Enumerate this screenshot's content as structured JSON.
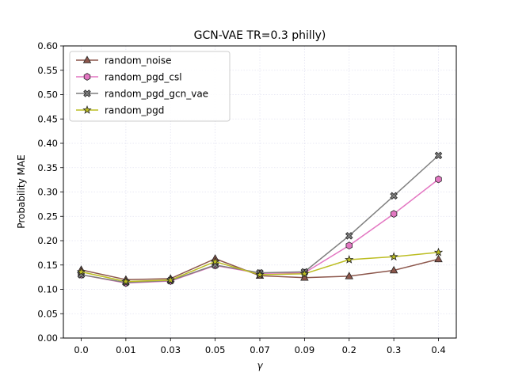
{
  "chart_data": {
    "type": "line",
    "title": "GCN-VAE TR=0.3 philly)",
    "xlabel": "γ",
    "ylabel": "Probability MAE",
    "categories": [
      "0.0",
      "0.01",
      "0.03",
      "0.05",
      "0.07",
      "0.09",
      "0.2",
      "0.3",
      "0.4"
    ],
    "ylim": [
      0.0,
      0.6
    ],
    "yticks": [
      "0.00",
      "0.05",
      "0.10",
      "0.15",
      "0.20",
      "0.25",
      "0.30",
      "0.35",
      "0.40",
      "0.45",
      "0.50",
      "0.55",
      "0.60"
    ],
    "grid": true,
    "legend_position": "top-left",
    "series": [
      {
        "name": "random_noise",
        "color": "#8c564b",
        "marker": "triangle",
        "values": [
          0.14,
          0.12,
          0.122,
          0.163,
          0.128,
          0.124,
          0.127,
          0.139,
          0.162
        ]
      },
      {
        "name": "random_pgd_csl",
        "color": "#e377c2",
        "marker": "hexagon",
        "values": [
          0.13,
          0.113,
          0.117,
          0.149,
          0.133,
          0.134,
          0.19,
          0.255,
          0.326
        ]
      },
      {
        "name": "random_pgd_gcn_vae",
        "color": "#7f7f7f",
        "marker": "x",
        "values": [
          0.13,
          0.114,
          0.118,
          0.15,
          0.134,
          0.136,
          0.21,
          0.292,
          0.375
        ]
      },
      {
        "name": "random_pgd",
        "color": "#bcbd22",
        "marker": "star",
        "values": [
          0.136,
          0.116,
          0.119,
          0.157,
          0.13,
          0.132,
          0.161,
          0.167,
          0.176
        ]
      }
    ]
  }
}
